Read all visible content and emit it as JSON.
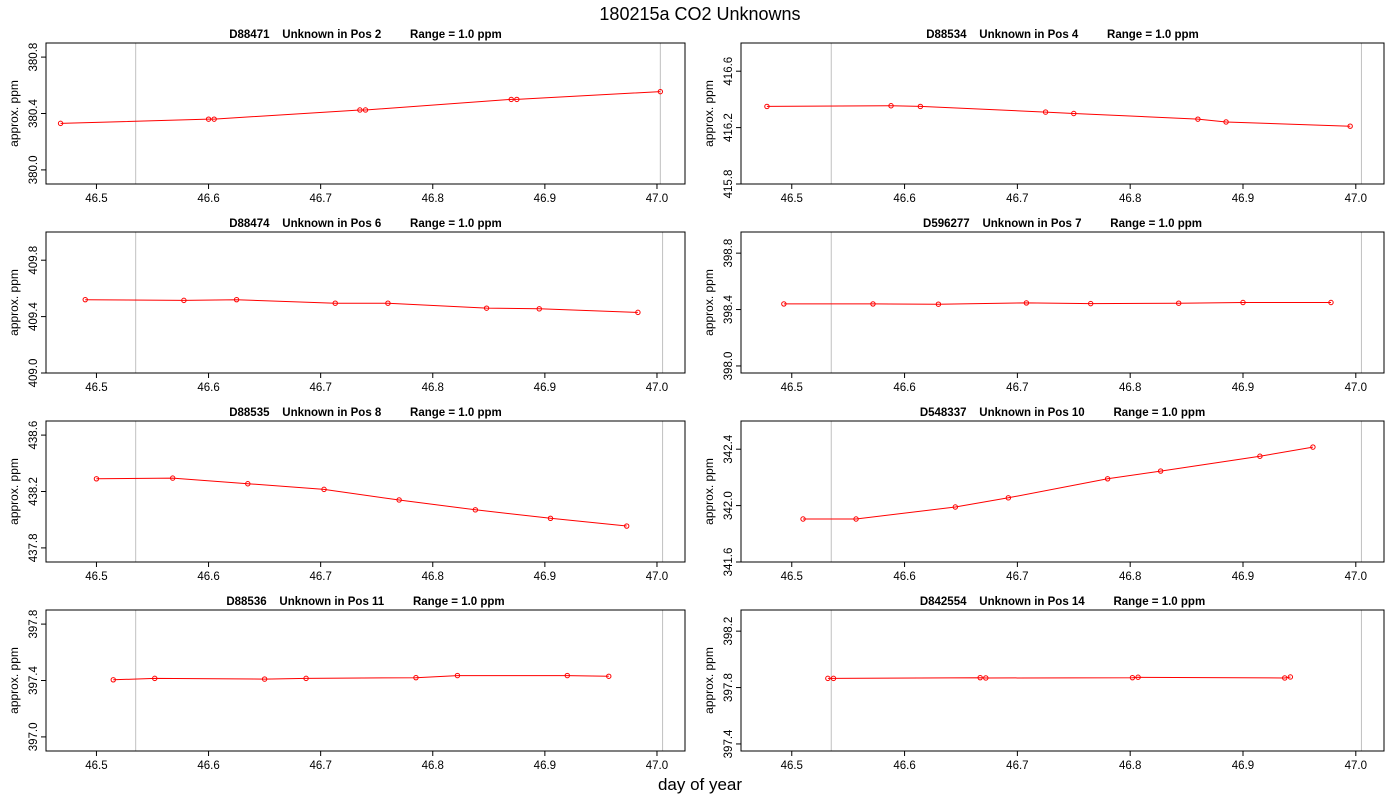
{
  "figure": {
    "title": "180215a  CO2 Unknowns",
    "xlabel": "day of year"
  },
  "style": {
    "series_color": "#ff0000",
    "marker_color": "#ff0000",
    "axis_color": "#000000",
    "vline_color": "#c0c0c0"
  },
  "chart_data": [
    {
      "type": "line",
      "title": "D88471    Unknown in Pos 2         Range = 1.0 ppm",
      "xlabel": "",
      "ylabel": "approx. ppm",
      "xlim": [
        46.455,
        47.025
      ],
      "ylim": [
        379.9,
        380.9
      ],
      "xticks": [
        "46.5",
        "46.6",
        "46.7",
        "46.8",
        "46.9",
        "47.0"
      ],
      "yticks": [
        "380.0",
        "380.4",
        "380.8"
      ],
      "vlines": [
        46.535,
        47.003
      ],
      "x": [
        46.468,
        46.6,
        46.605,
        46.735,
        46.74,
        46.87,
        46.875,
        47.003
      ],
      "y": [
        380.33,
        380.36,
        380.36,
        380.425,
        380.425,
        380.5,
        380.5,
        380.555
      ]
    },
    {
      "type": "line",
      "title": "D88534    Unknown in Pos 4         Range = 1.0 ppm",
      "xlabel": "",
      "ylabel": "approx. ppm",
      "xlim": [
        46.455,
        47.025
      ],
      "ylim": [
        415.8,
        416.8
      ],
      "xticks": [
        "46.5",
        "46.6",
        "46.7",
        "46.8",
        "46.9",
        "47.0"
      ],
      "yticks": [
        "415.8",
        "416.2",
        "416.6"
      ],
      "vlines": [
        46.535,
        47.005
      ],
      "x": [
        46.478,
        46.588,
        46.614,
        46.725,
        46.75,
        46.86,
        46.885,
        46.995
      ],
      "y": [
        416.35,
        416.355,
        416.35,
        416.31,
        416.3,
        416.26,
        416.24,
        416.21
      ]
    },
    {
      "type": "line",
      "title": "D88474    Unknown in Pos 6         Range = 1.0 ppm",
      "xlabel": "",
      "ylabel": "approx. ppm",
      "xlim": [
        46.455,
        47.025
      ],
      "ylim": [
        409.0,
        410.0
      ],
      "xticks": [
        "46.5",
        "46.6",
        "46.7",
        "46.8",
        "46.9",
        "47.0"
      ],
      "yticks": [
        "409.0",
        "409.4",
        "409.8"
      ],
      "vlines": [
        46.535,
        47.005
      ],
      "x": [
        46.49,
        46.578,
        46.625,
        46.713,
        46.76,
        46.848,
        46.895,
        46.983
      ],
      "y": [
        409.52,
        409.515,
        409.52,
        409.495,
        409.495,
        409.46,
        409.455,
        409.43
      ]
    },
    {
      "type": "line",
      "title": "D596277    Unknown in Pos 7         Range = 1.0 ppm",
      "xlabel": "",
      "ylabel": "approx. ppm",
      "xlim": [
        46.455,
        47.025
      ],
      "ylim": [
        397.95,
        398.95
      ],
      "xticks": [
        "46.5",
        "46.6",
        "46.7",
        "46.8",
        "46.9",
        "47.0"
      ],
      "yticks": [
        "398.0",
        "398.4",
        "398.8"
      ],
      "vlines": [
        46.535,
        47.005
      ],
      "x": [
        46.493,
        46.572,
        46.63,
        46.708,
        46.765,
        46.843,
        46.9,
        46.978
      ],
      "y": [
        398.44,
        398.44,
        398.438,
        398.447,
        398.442,
        398.445,
        398.45,
        398.45
      ]
    },
    {
      "type": "line",
      "title": "D88535    Unknown in Pos 8         Range = 1.0 ppm",
      "xlabel": "",
      "ylabel": "approx. ppm",
      "xlim": [
        46.455,
        47.025
      ],
      "ylim": [
        437.7,
        438.7
      ],
      "xticks": [
        "46.5",
        "46.6",
        "46.7",
        "46.8",
        "46.9",
        "47.0"
      ],
      "yticks": [
        "437.8",
        "438.2",
        "438.6"
      ],
      "vlines": [
        46.535,
        47.005
      ],
      "x": [
        46.5,
        46.568,
        46.635,
        46.703,
        46.77,
        46.838,
        46.905,
        46.973
      ],
      "y": [
        438.29,
        438.295,
        438.255,
        438.215,
        438.14,
        438.07,
        438.01,
        437.955
      ]
    },
    {
      "type": "line",
      "title": "D548337    Unknown in Pos 10         Range = 1.0 ppm",
      "xlabel": "",
      "ylabel": "approx. ppm",
      "xlim": [
        46.455,
        47.025
      ],
      "ylim": [
        341.6,
        342.6
      ],
      "xticks": [
        "46.5",
        "46.6",
        "46.7",
        "46.8",
        "46.9",
        "47.0"
      ],
      "yticks": [
        "341.6",
        "342.0",
        "342.4"
      ],
      "vlines": [
        46.535,
        47.005
      ],
      "x": [
        46.51,
        46.557,
        46.645,
        46.692,
        46.78,
        46.827,
        46.915,
        46.962
      ],
      "y": [
        341.905,
        341.905,
        341.99,
        342.055,
        342.19,
        342.245,
        342.35,
        342.415
      ]
    },
    {
      "type": "line",
      "title": "D88536    Unknown in Pos 11         Range = 1.0 ppm",
      "xlabel": "",
      "ylabel": "approx. ppm",
      "xlim": [
        46.455,
        47.025
      ],
      "ylim": [
        396.9,
        397.9
      ],
      "xticks": [
        "46.5",
        "46.6",
        "46.7",
        "46.8",
        "46.9",
        "47.0"
      ],
      "yticks": [
        "397.0",
        "397.4",
        "397.8"
      ],
      "vlines": [
        46.535,
        47.005
      ],
      "x": [
        46.515,
        46.552,
        46.65,
        46.687,
        46.785,
        46.822,
        46.92,
        46.957
      ],
      "y": [
        397.405,
        397.415,
        397.41,
        397.415,
        397.42,
        397.435,
        397.435,
        397.43
      ]
    },
    {
      "type": "line",
      "title": "D842554    Unknown in Pos 14         Range = 1.0 ppm",
      "xlabel": "",
      "ylabel": "approx. ppm",
      "xlim": [
        46.455,
        47.025
      ],
      "ylim": [
        397.35,
        398.35
      ],
      "xticks": [
        "46.5",
        "46.6",
        "46.7",
        "46.8",
        "46.9",
        "47.0"
      ],
      "yticks": [
        "397.4",
        "397.8",
        "398.2"
      ],
      "vlines": [
        46.535,
        47.005
      ],
      "x": [
        46.532,
        46.537,
        46.667,
        46.672,
        46.802,
        46.807,
        46.937,
        46.942
      ],
      "y": [
        397.865,
        397.865,
        397.87,
        397.868,
        397.87,
        397.873,
        397.868,
        397.875
      ]
    }
  ]
}
